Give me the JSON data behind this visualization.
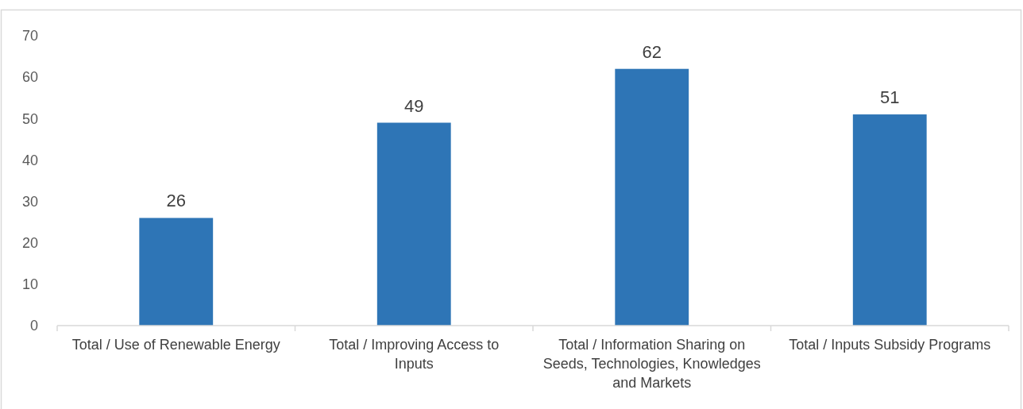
{
  "chart_data": {
    "type": "bar",
    "categories": [
      "Total / Use of Renewable Energy",
      "Total / Improving Access to Inputs",
      "Total / Information Sharing on Seeds, Technologies, Knowledges and Markets",
      "Total / Inputs Subsidy Programs"
    ],
    "values": [
      26,
      49,
      62,
      51
    ],
    "color": "#2e75b6",
    "ylim": [
      0,
      70
    ],
    "yticks": [
      0,
      10,
      20,
      30,
      40,
      50,
      60,
      70
    ],
    "grid": false,
    "data_labels": true
  }
}
